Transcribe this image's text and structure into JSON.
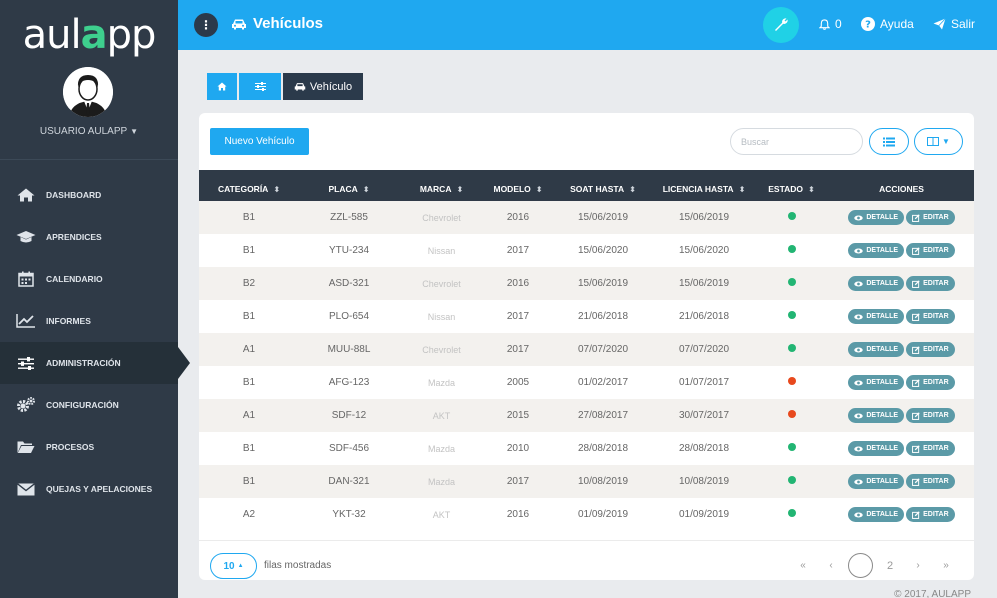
{
  "sidebar": {
    "logo_left": "aul",
    "logo_accent": "a",
    "logo_right": "pp",
    "user": "USUARIO AULAPP",
    "items": [
      {
        "label": "DASHBOARD",
        "icon": "home-icon"
      },
      {
        "label": "APRENDICES",
        "icon": "graduation-cap-icon"
      },
      {
        "label": "CALENDARIO",
        "icon": "calendar-icon"
      },
      {
        "label": "INFORMES",
        "icon": "line-chart-icon"
      },
      {
        "label": "ADMINISTRACIÓN",
        "icon": "sliders-icon"
      },
      {
        "label": "CONFIGURACIÓN",
        "icon": "gears-icon"
      },
      {
        "label": "PROCESOS",
        "icon": "folder-icon"
      },
      {
        "label": "QUEJAS Y APELACIONES",
        "icon": "envelope-icon"
      }
    ],
    "active_index": 4
  },
  "topbar": {
    "menu_glyph": "⋮",
    "title": "Vehículos",
    "notifications": "0",
    "help": "Ayuda",
    "logout": "Salir"
  },
  "breadcrumb": {
    "current": "Vehículo"
  },
  "toolbar": {
    "new_label": "Nuevo Vehículo",
    "search_placeholder": "Buscar"
  },
  "table": {
    "columns": [
      "CATEGORÍA",
      "PLACA",
      "MARCA",
      "MODELO",
      "SOAT HASTA",
      "LICENCIA HASTA",
      "ESTADO",
      "ACCIONES"
    ],
    "detail_label": "DETALLE",
    "edit_label": "EDITAR",
    "rows": [
      {
        "categoria": "B1",
        "placa": "ZZL-585",
        "marca": "Chevrolet",
        "modelo": "2016",
        "soat": "15/06/2019",
        "licencia": "15/06/2019",
        "estado": "#22b573"
      },
      {
        "categoria": "B1",
        "placa": "YTU-234",
        "marca": "Nissan",
        "modelo": "2017",
        "soat": "15/06/2020",
        "licencia": "15/06/2020",
        "estado": "#22b573"
      },
      {
        "categoria": "B2",
        "placa": "ASD-321",
        "marca": "Chevrolet",
        "modelo": "2016",
        "soat": "15/06/2019",
        "licencia": "15/06/2019",
        "estado": "#22b573"
      },
      {
        "categoria": "B1",
        "placa": "PLO-654",
        "marca": "Nissan",
        "modelo": "2017",
        "soat": "21/06/2018",
        "licencia": "21/06/2018",
        "estado": "#22b573"
      },
      {
        "categoria": "A1",
        "placa": "MUU-88L",
        "marca": "Chevrolet",
        "modelo": "2017",
        "soat": "07/07/2020",
        "licencia": "07/07/2020",
        "estado": "#22b573"
      },
      {
        "categoria": "B1",
        "placa": "AFG-123",
        "marca": "Mazda",
        "modelo": "2005",
        "soat": "01/02/2017",
        "licencia": "01/07/2017",
        "estado": "#e8491d"
      },
      {
        "categoria": "A1",
        "placa": "SDF-12",
        "marca": "AKT",
        "modelo": "2015",
        "soat": "27/08/2017",
        "licencia": "30/07/2017",
        "estado": "#e8491d"
      },
      {
        "categoria": "B1",
        "placa": "SDF-456",
        "marca": "Mazda",
        "modelo": "2010",
        "soat": "28/08/2018",
        "licencia": "28/08/2018",
        "estado": "#22b573"
      },
      {
        "categoria": "B1",
        "placa": "DAN-321",
        "marca": "Mazda",
        "modelo": "2017",
        "soat": "10/08/2019",
        "licencia": "10/08/2019",
        "estado": "#22b573"
      },
      {
        "categoria": "A2",
        "placa": "YKT-32",
        "marca": "AKT",
        "modelo": "2016",
        "soat": "01/09/2019",
        "licencia": "01/09/2019",
        "estado": "#22b573"
      }
    ]
  },
  "footer": {
    "page_size": "10",
    "rows_label": "filas mostradas",
    "first": "«",
    "prev": "‹",
    "current_page": "",
    "page2": "2",
    "next": "›",
    "last": "»",
    "copyright": "© 2017, AULAPP"
  }
}
